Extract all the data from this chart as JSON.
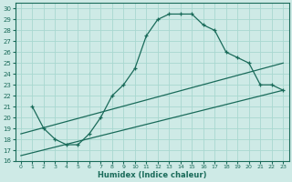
{
  "xlabel": "Humidex (Indice chaleur)",
  "bg_color": "#ceeae6",
  "line_color": "#1a6b5a",
  "grid_color": "#a8d8d0",
  "xlim": [
    -0.5,
    23.5
  ],
  "ylim": [
    16,
    30.5
  ],
  "yticks": [
    16,
    17,
    18,
    19,
    20,
    21,
    22,
    23,
    24,
    25,
    26,
    27,
    28,
    29,
    30
  ],
  "xticks": [
    0,
    1,
    2,
    3,
    4,
    5,
    6,
    7,
    8,
    9,
    10,
    11,
    12,
    13,
    14,
    15,
    16,
    17,
    18,
    19,
    20,
    21,
    22,
    23
  ],
  "series1_x": [
    1,
    2,
    3,
    4,
    5,
    6,
    7,
    8,
    9,
    10,
    11,
    12,
    13,
    14,
    15,
    16,
    17,
    18,
    19,
    20,
    21,
    22,
    23
  ],
  "series1_y": [
    21.0,
    19.0,
    18.0,
    17.5,
    17.5,
    18.5,
    20.0,
    22.0,
    23.0,
    24.5,
    27.5,
    29.0,
    29.5,
    29.5,
    29.5,
    28.5,
    28.0,
    26.0,
    25.5,
    25.0,
    23.0,
    23.0,
    22.5
  ],
  "series2_x": [
    0,
    23
  ],
  "series2_y": [
    18.5,
    25.0
  ],
  "series3_x": [
    0,
    23
  ],
  "series3_y": [
    16.5,
    22.5
  ]
}
